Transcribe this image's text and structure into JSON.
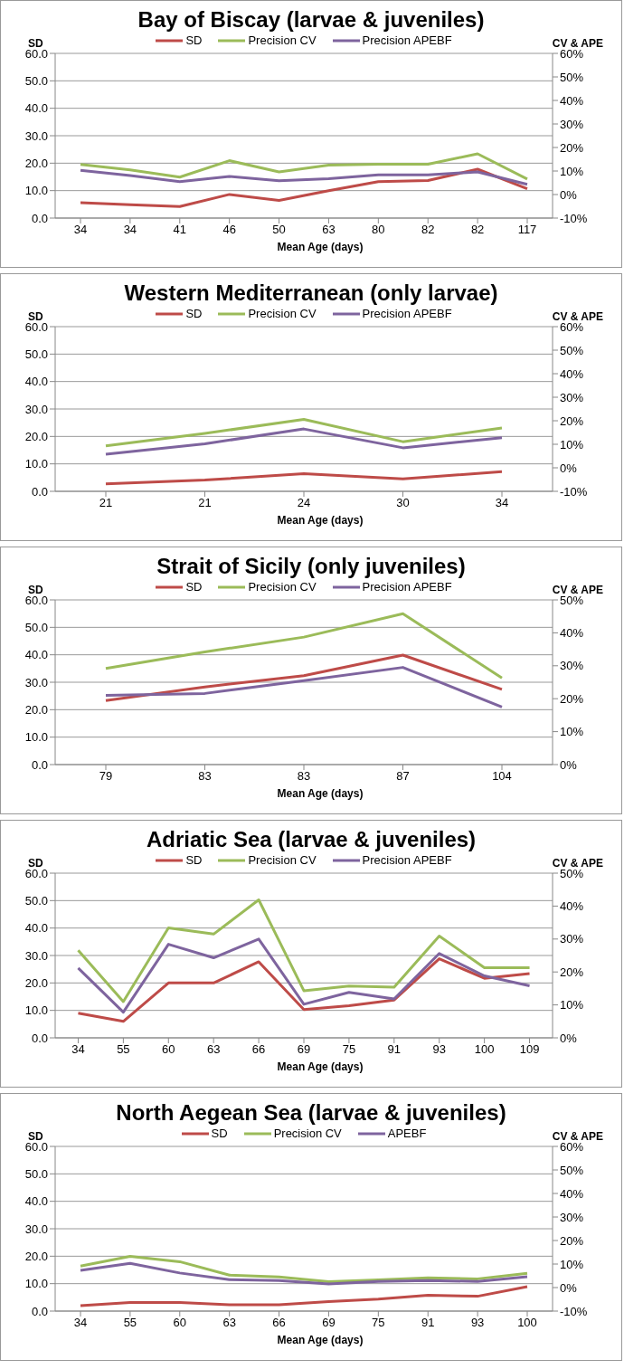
{
  "chart_data": [
    {
      "type": "line",
      "title": "Bay of Biscay (larvae & juveniles)",
      "xlabel": "Mean Age (days)",
      "ylabel": "SD",
      "y2label": "CV & APE",
      "categories": [
        "34",
        "34",
        "41",
        "46",
        "50",
        "63",
        "80",
        "82",
        "82",
        "117"
      ],
      "series": [
        {
          "name": "SD",
          "color": "#be4b48",
          "values": [
            5.6,
            4.9,
            4.2,
            8.6,
            6.4,
            10,
            13.3,
            13.7,
            17.8,
            10.7
          ]
        },
        {
          "name": "Precision CV",
          "color": "#9bbb59",
          "axis": "y2",
          "values": [
            12.8,
            10.5,
            7.4,
            14.4,
            9.6,
            12.5,
            12.9,
            12.9,
            17.3,
            6.6
          ]
        },
        {
          "name": "Precision APEBF",
          "color": "#7e649e",
          "axis": "y2",
          "values": [
            10.3,
            8.1,
            5.5,
            7.7,
            5.9,
            6.7,
            8.4,
            8.4,
            9.6,
            4.3
          ]
        }
      ],
      "ylim": [
        0,
        60
      ],
      "yticks": [
        {
          "value": 0,
          "label": "0.0"
        },
        {
          "value": 10,
          "label": "10.0"
        },
        {
          "value": 20,
          "label": "20.0"
        },
        {
          "value": 30,
          "label": "30.0"
        },
        {
          "value": 40,
          "label": "40.0"
        },
        {
          "value": 50,
          "label": "50.0"
        },
        {
          "value": 60,
          "label": "60.0"
        }
      ],
      "y2lim": [
        -10,
        60
      ],
      "y2ticks": [
        {
          "value": -10,
          "label": "-10%"
        },
        {
          "value": 0,
          "label": "0%"
        },
        {
          "value": 10,
          "label": "10%"
        },
        {
          "value": 20,
          "label": "20%"
        },
        {
          "value": 30,
          "label": "30%"
        },
        {
          "value": 40,
          "label": "40%"
        },
        {
          "value": 50,
          "label": "50%"
        },
        {
          "value": 60,
          "label": "60%"
        }
      ],
      "grid": "y",
      "legend": "top",
      "marker": "none"
    },
    {
      "type": "line",
      "title": "Western Mediterranean (only larvae)",
      "xlabel": "Mean Age (days)",
      "ylabel": "SD",
      "y2label": "CV & APE",
      "categories": [
        "21",
        "21",
        "24",
        "30",
        "34"
      ],
      "series": [
        {
          "name": "SD",
          "color": "#be4b48",
          "values": [
            2.7,
            4.1,
            6.4,
            4.5,
            7.2
          ]
        },
        {
          "name": "Precision CV",
          "color": "#9bbb59",
          "axis": "y2",
          "values": [
            9.3,
            14.6,
            20.6,
            11.1,
            16.9
          ]
        },
        {
          "name": "Precision APEBF",
          "color": "#7e649e",
          "axis": "y2",
          "values": [
            5.8,
            10.2,
            16.5,
            8.5,
            12.8
          ]
        }
      ],
      "ylim": [
        0,
        60
      ],
      "yticks": [
        {
          "value": 0,
          "label": "0.0"
        },
        {
          "value": 10,
          "label": "10.0"
        },
        {
          "value": 20,
          "label": "20.0"
        },
        {
          "value": 30,
          "label": "30.0"
        },
        {
          "value": 40,
          "label": "40.0"
        },
        {
          "value": 50,
          "label": "50.0"
        },
        {
          "value": 60,
          "label": "60.0"
        }
      ],
      "y2lim": [
        -10,
        60
      ],
      "y2ticks": [
        {
          "value": -10,
          "label": "-10%"
        },
        {
          "value": 0,
          "label": "0%"
        },
        {
          "value": 10,
          "label": "10%"
        },
        {
          "value": 20,
          "label": "20%"
        },
        {
          "value": 30,
          "label": "30%"
        },
        {
          "value": 40,
          "label": "40%"
        },
        {
          "value": 50,
          "label": "50%"
        },
        {
          "value": 60,
          "label": "60%"
        }
      ],
      "grid": "y",
      "legend": "top",
      "marker": "none"
    },
    {
      "type": "line",
      "title": "Strait of Sicily (only juveniles)",
      "xlabel": "Mean Age (days)",
      "ylabel": "SD",
      "y2label": "CV & APE",
      "categories": [
        "79",
        "83",
        "83",
        "87",
        "104"
      ],
      "series": [
        {
          "name": "SD",
          "color": "#be4b48",
          "values": [
            23.3,
            28.3,
            32.4,
            39.9,
            27.4
          ]
        },
        {
          "name": "Precision CV",
          "color": "#9bbb59",
          "axis": "y2",
          "values": [
            29.2,
            34.2,
            38.7,
            45.8,
            26.3
          ]
        },
        {
          "name": "Precision APEBF",
          "color": "#7e649e",
          "axis": "y2",
          "values": [
            21.0,
            21.6,
            25.5,
            29.5,
            17.5
          ]
        }
      ],
      "ylim": [
        0,
        60
      ],
      "yticks": [
        {
          "value": 0,
          "label": "0.0"
        },
        {
          "value": 10,
          "label": "10.0"
        },
        {
          "value": 20,
          "label": "20.0"
        },
        {
          "value": 30,
          "label": "30.0"
        },
        {
          "value": 40,
          "label": "40.0"
        },
        {
          "value": 50,
          "label": "50.0"
        },
        {
          "value": 60,
          "label": "60.0"
        }
      ],
      "y2lim": [
        0,
        50
      ],
      "y2ticks": [
        {
          "value": 0,
          "label": "0%"
        },
        {
          "value": 10,
          "label": "10%"
        },
        {
          "value": 20,
          "label": "20%"
        },
        {
          "value": 30,
          "label": "30%"
        },
        {
          "value": 40,
          "label": "40%"
        },
        {
          "value": 50,
          "label": "50%"
        }
      ],
      "grid": "y",
      "legend": "top",
      "marker": "none"
    },
    {
      "type": "line",
      "title": "Adriatic Sea (larvae & juveniles)",
      "xlabel": "Mean Age (days)",
      "ylabel": "SD",
      "y2label": "CV & APE",
      "categories": [
        "34",
        "55",
        "60",
        "63",
        "66",
        "69",
        "75",
        "91",
        "93",
        "100",
        "109"
      ],
      "series": [
        {
          "name": "SD",
          "color": "#be4b48",
          "values": [
            9.0,
            6.0,
            20.0,
            20.0,
            27.7,
            10.3,
            11.7,
            13.8,
            28.8,
            21.7,
            23.4
          ]
        },
        {
          "name": "Precision CV",
          "color": "#9bbb59",
          "axis": "y2",
          "values": [
            26.6,
            11.0,
            33.4,
            31.5,
            41.9,
            14.3,
            15.7,
            15.4,
            30.9,
            21.3,
            21.3
          ]
        },
        {
          "name": "Precision APEBF",
          "color": "#7e649e",
          "axis": "y2",
          "values": [
            21.2,
            7.8,
            28.4,
            24.3,
            30.0,
            10.2,
            13.8,
            11.8,
            25.6,
            18.8,
            15.8
          ]
        }
      ],
      "ylim": [
        0,
        60
      ],
      "yticks": [
        {
          "value": 0,
          "label": "0.0"
        },
        {
          "value": 10,
          "label": "10.0"
        },
        {
          "value": 20,
          "label": "20.0"
        },
        {
          "value": 30,
          "label": "30.0"
        },
        {
          "value": 40,
          "label": "40.0"
        },
        {
          "value": 50,
          "label": "50.0"
        },
        {
          "value": 60,
          "label": "60.0"
        }
      ],
      "y2lim": [
        0,
        50
      ],
      "y2ticks": [
        {
          "value": 0,
          "label": "0%"
        },
        {
          "value": 10,
          "label": "10%"
        },
        {
          "value": 20,
          "label": "20%"
        },
        {
          "value": 30,
          "label": "30%"
        },
        {
          "value": 40,
          "label": "40%"
        },
        {
          "value": 50,
          "label": "50%"
        }
      ],
      "grid": "y",
      "legend": "top",
      "marker": "none"
    },
    {
      "type": "line",
      "title": "North Aegean Sea (larvae & juveniles)",
      "xlabel": "Mean Age (days)",
      "ylabel": "SD",
      "y2label": "CV & APE",
      "categories": [
        "34",
        "55",
        "60",
        "63",
        "66",
        "69",
        "75",
        "91",
        "93",
        "100"
      ],
      "series": [
        {
          "name": "SD",
          "color": "#be4b48",
          "values": [
            2.0,
            3.1,
            3.1,
            2.3,
            2.3,
            3.5,
            4.4,
            5.8,
            5.4,
            8.9
          ]
        },
        {
          "name": "Precision CV",
          "color": "#9bbb59",
          "axis": "y2",
          "values": [
            9.1,
            13.3,
            11.0,
            5.3,
            4.5,
            2.5,
            3.3,
            4.1,
            3.7,
            6.1
          ]
        },
        {
          "name": "APEBF",
          "color": "#7e649e",
          "axis": "y2",
          "values": [
            7.3,
            10.3,
            6.2,
            3.4,
            3.0,
            1.5,
            2.6,
            3.0,
            2.6,
            4.6
          ]
        }
      ],
      "ylim": [
        0,
        60
      ],
      "yticks": [
        {
          "value": 0,
          "label": "0.0"
        },
        {
          "value": 10,
          "label": "10.0"
        },
        {
          "value": 20,
          "label": "20.0"
        },
        {
          "value": 30,
          "label": "30.0"
        },
        {
          "value": 40,
          "label": "40.0"
        },
        {
          "value": 50,
          "label": "50.0"
        },
        {
          "value": 60,
          "label": "60.0"
        }
      ],
      "y2lim": [
        -10,
        60
      ],
      "y2ticks": [
        {
          "value": -10,
          "label": "-10%"
        },
        {
          "value": 0,
          "label": "0%"
        },
        {
          "value": 10,
          "label": "10%"
        },
        {
          "value": 20,
          "label": "20%"
        },
        {
          "value": 30,
          "label": "30%"
        },
        {
          "value": 40,
          "label": "40%"
        },
        {
          "value": 50,
          "label": "50%"
        },
        {
          "value": 60,
          "label": "60%"
        }
      ],
      "grid": "y",
      "legend": "top",
      "marker": "none"
    }
  ]
}
